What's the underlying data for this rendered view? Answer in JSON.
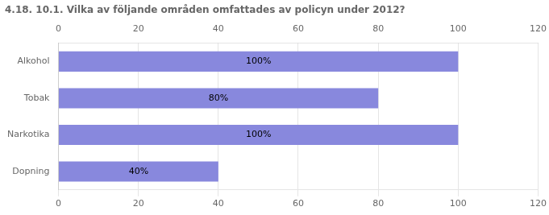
{
  "chart_data": {
    "type": "bar",
    "orientation": "horizontal",
    "title": "4.18. 10.1. Vilka av följande områden omfattades av policyn under 2012?",
    "categories": [
      "Alkohol",
      "Tobak",
      "Narkotika",
      "Dopning"
    ],
    "values": [
      100,
      80,
      100,
      40
    ],
    "value_labels": [
      "100%",
      "80%",
      "100%",
      "40%"
    ],
    "data_labels": true,
    "color": "#8888dd",
    "xlim": [
      0,
      120
    ],
    "xticks": [
      0,
      20,
      40,
      60,
      80,
      100,
      120
    ],
    "grid": true
  }
}
